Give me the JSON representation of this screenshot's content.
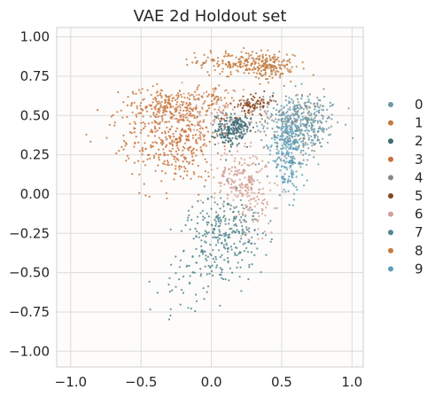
{
  "chart_data": {
    "type": "scatter",
    "title": "VAE 2d Holdout set",
    "xlabel": "",
    "ylabel": "",
    "xlim": [
      -1.1,
      1.08
    ],
    "ylim": [
      -1.1,
      1.06
    ],
    "x_ticks": [
      -1.0,
      -0.5,
      0.0,
      0.5,
      1.0
    ],
    "x_tick_labels": [
      "−1.0",
      "−0.5",
      "0.0",
      "0.5",
      "1.0"
    ],
    "y_ticks": [
      1.0,
      0.75,
      0.5,
      0.25,
      0.0,
      -0.25,
      -0.5,
      -0.75,
      -1.0
    ],
    "y_tick_labels": [
      "1.00",
      "0.75",
      "0.50",
      "0.25",
      "0.00",
      "−0.25",
      "−0.50",
      "−0.75",
      "−1.00"
    ],
    "grid": true,
    "legend_position": "right",
    "series": [
      {
        "name": "0",
        "color": "#6a9aa6",
        "clusters": [
          {
            "cx": 0.7,
            "cy": 0.47,
            "sx": 0.11,
            "sy": 0.09,
            "n": 160,
            "r": -0.2
          },
          {
            "cx": 0.62,
            "cy": 0.33,
            "sx": 0.1,
            "sy": 0.1,
            "n": 50
          }
        ]
      },
      {
        "name": "1",
        "color": "#c27a3f",
        "clusters": [
          {
            "cx": 0.25,
            "cy": 0.83,
            "sx": 0.17,
            "sy": 0.04,
            "n": 220,
            "r": -0.25
          },
          {
            "cx": 0.42,
            "cy": 0.8,
            "sx": 0.08,
            "sy": 0.04,
            "n": 80
          }
        ]
      },
      {
        "name": "2",
        "color": "#3e6b75",
        "clusters": [
          {
            "cx": 0.13,
            "cy": 0.41,
            "sx": 0.05,
            "sy": 0.05,
            "n": 150
          },
          {
            "cx": 0.2,
            "cy": 0.42,
            "sx": 0.04,
            "sy": 0.04,
            "n": 60
          }
        ]
      },
      {
        "name": "3",
        "color": "#c8703a",
        "clusters": [
          {
            "cx": -0.22,
            "cy": 0.33,
            "sx": 0.14,
            "sy": 0.14,
            "n": 280,
            "r": 0.2
          },
          {
            "cx": -0.45,
            "cy": 0.4,
            "sx": 0.18,
            "sy": 0.12,
            "n": 90
          }
        ]
      },
      {
        "name": "4",
        "color": "#8a8a8a",
        "clusters": [
          {
            "cx": 0.6,
            "cy": 0.45,
            "sx": 0.14,
            "sy": 0.11,
            "n": 130
          },
          {
            "cx": 0.4,
            "cy": 0.52,
            "sx": 0.18,
            "sy": 0.06,
            "n": 40
          }
        ]
      },
      {
        "name": "5",
        "color": "#8a4520",
        "clusters": [
          {
            "cx": 0.3,
            "cy": 0.57,
            "sx": 0.07,
            "sy": 0.03,
            "n": 90,
            "r": 0.3
          }
        ]
      },
      {
        "name": "6",
        "color": "#d4a096",
        "clusters": [
          {
            "cx": 0.22,
            "cy": 0.08,
            "sx": 0.1,
            "sy": 0.1,
            "n": 220,
            "r": -0.2
          },
          {
            "cx": -0.05,
            "cy": 0.52,
            "sx": 0.17,
            "sy": 0.08,
            "n": 90
          },
          {
            "cx": 0.3,
            "cy": -0.13,
            "sx": 0.05,
            "sy": 0.08,
            "n": 35
          }
        ]
      },
      {
        "name": "7",
        "color": "#4f858f",
        "clusters": [
          {
            "cx": 0.1,
            "cy": -0.2,
            "sx": 0.13,
            "sy": 0.1,
            "n": 200
          },
          {
            "cx": 0.05,
            "cy": -0.42,
            "sx": 0.13,
            "sy": 0.1,
            "n": 110
          },
          {
            "cx": -0.25,
            "cy": -0.6,
            "sx": 0.1,
            "sy": 0.12,
            "n": 25
          }
        ]
      },
      {
        "name": "8",
        "color": "#c97840",
        "clusters": [
          {
            "cx": -0.32,
            "cy": 0.56,
            "sx": 0.15,
            "sy": 0.06,
            "n": 170,
            "r": 0.1
          },
          {
            "cx": 0.0,
            "cy": 0.6,
            "sx": 0.1,
            "sy": 0.05,
            "n": 60
          }
        ]
      },
      {
        "name": "9",
        "color": "#5c9eb8",
        "clusters": [
          {
            "cx": 0.55,
            "cy": 0.38,
            "sx": 0.07,
            "sy": 0.11,
            "n": 240
          },
          {
            "cx": 0.55,
            "cy": 0.15,
            "sx": 0.06,
            "sy": 0.09,
            "n": 90
          }
        ]
      }
    ]
  }
}
